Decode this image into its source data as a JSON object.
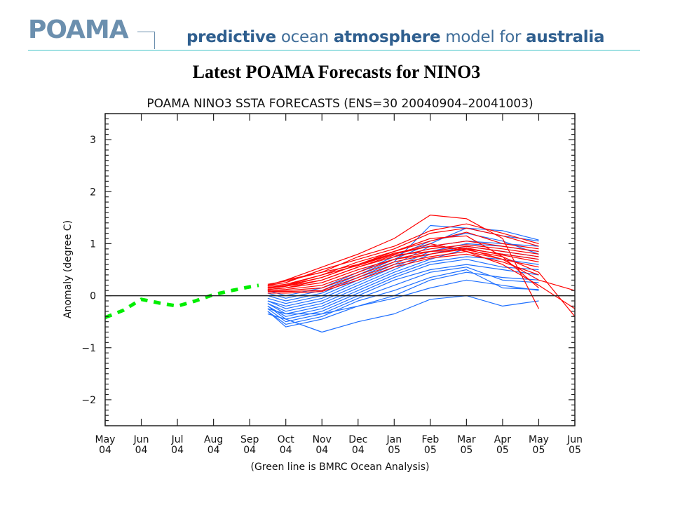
{
  "header": {
    "logo": "POAMA",
    "tagline": [
      {
        "text": "predictive",
        "bold": true
      },
      {
        "text": " ocean ",
        "bold": false
      },
      {
        "text": "atmosphere",
        "bold": true
      },
      {
        "text": " model for ",
        "bold": false
      },
      {
        "text": "australia",
        "bold": true
      }
    ],
    "colors": {
      "logo": "#6b8fae",
      "tagline": "#3f6d99",
      "rule": "#44c4c8"
    }
  },
  "page_title": "Latest POAMA Forecasts for NINO3",
  "chart_data": {
    "type": "line",
    "title": "POAMA NINO3 SSTA FORECASTS (ENS=30 20040904–20041003)",
    "xlabel": "(Green line is BMRC Ocean Analysis)",
    "ylabel": "Anomaly (degree C)",
    "x_ticks": [
      {
        "m": "May",
        "y": "04"
      },
      {
        "m": "Jun",
        "y": "04"
      },
      {
        "m": "Jul",
        "y": "04"
      },
      {
        "m": "Aug",
        "y": "04"
      },
      {
        "m": "Sep",
        "y": "04"
      },
      {
        "m": "Oct",
        "y": "04"
      },
      {
        "m": "Nov",
        "y": "04"
      },
      {
        "m": "Dec",
        "y": "04"
      },
      {
        "m": "Jan",
        "y": "05"
      },
      {
        "m": "Feb",
        "y": "05"
      },
      {
        "m": "Mar",
        "y": "05"
      },
      {
        "m": "Apr",
        "y": "05"
      },
      {
        "m": "May",
        "y": "05"
      },
      {
        "m": "Jun",
        "y": "05"
      }
    ],
    "xlim": [
      0,
      13
    ],
    "ylim": [
      -2.5,
      3.5
    ],
    "y_ticks": [
      -2,
      -1,
      0,
      1,
      2,
      3
    ],
    "y_minor_step": 0.1,
    "grid": false,
    "zero_line": true,
    "colors": {
      "analysis": "#00ee00",
      "red_members": "#ff0000",
      "blue_members": "#1e6fff",
      "axis": "#222222"
    },
    "analysis": {
      "name": "BMRC Ocean Analysis",
      "style": "dashed",
      "x": [
        0,
        0.5,
        1,
        1.5,
        2,
        2.5,
        3,
        3.5,
        4,
        4.25
      ],
      "y": [
        -0.42,
        -0.28,
        -0.07,
        -0.14,
        -0.2,
        -0.1,
        0.02,
        0.1,
        0.17,
        0.2
      ]
    },
    "red_members": [
      {
        "x": [
          4.5,
          5.0,
          6.0,
          7.0,
          8.0,
          9.0,
          10.0,
          11.0,
          12.0
        ],
        "y": [
          0.2,
          0.3,
          0.55,
          0.8,
          1.1,
          1.55,
          1.48,
          1.1,
          -0.25
        ]
      },
      {
        "x": [
          4.5,
          5.0,
          6.0,
          7.0,
          8.0,
          9.0,
          10.0,
          11.0,
          12.0
        ],
        "y": [
          0.22,
          0.28,
          0.45,
          0.75,
          0.95,
          1.25,
          1.38,
          1.2,
          1.0
        ]
      },
      {
        "x": [
          4.5,
          5.0,
          6.0,
          7.0,
          8.0,
          9.0,
          10.0,
          11.0,
          12.0
        ],
        "y": [
          0.2,
          0.25,
          0.5,
          0.7,
          0.9,
          1.2,
          1.3,
          1.15,
          0.95
        ]
      },
      {
        "x": [
          4.5,
          5.0,
          6.0,
          7.0,
          8.0,
          9.0,
          10.0,
          11.0,
          12.0
        ],
        "y": [
          0.18,
          0.22,
          0.4,
          0.65,
          0.85,
          1.05,
          1.22,
          1.0,
          0.9
        ]
      },
      {
        "x": [
          4.5,
          5.0,
          6.0,
          7.0,
          8.0,
          9.0,
          10.0,
          11.0,
          12.0
        ],
        "y": [
          0.15,
          0.2,
          0.35,
          0.6,
          0.8,
          0.95,
          1.05,
          0.95,
          0.85
        ]
      },
      {
        "x": [
          4.5,
          5.0,
          6.0,
          7.0,
          8.0,
          9.0,
          10.0,
          11.0,
          12.0
        ],
        "y": [
          0.15,
          0.18,
          0.3,
          0.55,
          0.75,
          0.9,
          0.98,
          0.9,
          0.8
        ]
      },
      {
        "x": [
          4.5,
          5.0,
          6.0,
          7.0,
          8.0,
          9.0,
          10.0,
          11.0,
          12.0
        ],
        "y": [
          0.12,
          0.15,
          0.25,
          0.5,
          0.7,
          0.85,
          0.95,
          0.85,
          0.75
        ]
      },
      {
        "x": [
          4.5,
          5.0,
          6.0,
          7.0,
          8.0,
          9.0,
          10.0,
          11.0,
          12.0
        ],
        "y": [
          0.1,
          0.12,
          0.2,
          0.45,
          0.7,
          0.8,
          0.9,
          0.8,
          0.7
        ]
      },
      {
        "x": [
          4.5,
          5.0,
          6.0,
          7.0,
          8.0,
          9.0,
          10.0,
          11.0,
          12.0
        ],
        "y": [
          0.1,
          0.1,
          0.15,
          0.4,
          0.65,
          0.8,
          0.92,
          0.78,
          0.65
        ]
      },
      {
        "x": [
          4.5,
          5.0,
          6.0,
          7.0,
          8.0,
          9.0,
          10.0,
          11.0,
          12.0,
          13.0
        ],
        "y": [
          0.12,
          0.15,
          0.3,
          0.55,
          0.78,
          0.85,
          0.88,
          0.75,
          0.45,
          -0.4
        ]
      },
      {
        "x": [
          4.5,
          5.0,
          6.0,
          7.0,
          8.0,
          9.0,
          10.0,
          11.0,
          12.0,
          13.0
        ],
        "y": [
          0.14,
          0.18,
          0.35,
          0.6,
          0.82,
          0.95,
          0.9,
          0.7,
          0.3,
          0.1
        ]
      },
      {
        "x": [
          4.5,
          5.0,
          6.0,
          7.0,
          8.0,
          9.0,
          10.0,
          11.0,
          12.0,
          13.0
        ],
        "y": [
          0.16,
          0.2,
          0.4,
          0.58,
          0.8,
          1.0,
          0.85,
          0.6,
          0.2,
          -0.25
        ]
      },
      {
        "x": [
          4.5,
          5.0,
          6.0,
          7.0,
          8.0,
          9.0,
          10.0,
          11.0,
          12.0
        ],
        "y": [
          0.08,
          0.08,
          0.1,
          0.35,
          0.6,
          0.75,
          0.85,
          0.7,
          0.55
        ]
      },
      {
        "x": [
          4.5,
          5.0,
          6.0,
          7.0,
          8.0,
          9.0,
          10.0,
          11.0,
          12.0
        ],
        "y": [
          0.05,
          0.05,
          0.08,
          0.3,
          0.55,
          0.72,
          0.8,
          0.65,
          0.4
        ]
      },
      {
        "x": [
          4.5,
          5.0,
          6.0,
          7.0,
          8.0,
          9.0,
          10.0,
          11.0,
          12.0
        ],
        "y": [
          0.2,
          0.3,
          0.45,
          0.6,
          0.85,
          1.1,
          1.15,
          0.75,
          0.15
        ]
      }
    ],
    "blue_members": [
      {
        "x": [
          4.5,
          5.0,
          6.0,
          7.0,
          8.0,
          9.0,
          10.0,
          11.0,
          12.0
        ],
        "y": [
          0.0,
          -0.1,
          0.05,
          0.35,
          0.65,
          1.35,
          1.3,
          1.25,
          1.07
        ]
      },
      {
        "x": [
          4.5,
          5.0,
          6.0,
          7.0,
          8.0,
          9.0,
          10.0,
          11.0,
          12.0
        ],
        "y": [
          0.05,
          -0.05,
          0.1,
          0.4,
          0.7,
          1.0,
          1.3,
          1.15,
          1.05
        ]
      },
      {
        "x": [
          4.5,
          5.0,
          6.0,
          7.0,
          8.0,
          9.0,
          10.0,
          11.0,
          12.0
        ],
        "y": [
          -0.05,
          -0.15,
          0.0,
          0.3,
          0.6,
          0.95,
          1.05,
          1.0,
          0.95
        ]
      },
      {
        "x": [
          4.5,
          5.0,
          6.0,
          7.0,
          8.0,
          9.0,
          10.0,
          11.0,
          12.0
        ],
        "y": [
          -0.1,
          -0.2,
          -0.05,
          0.25,
          0.55,
          0.85,
          1.0,
          0.95,
          0.85
        ]
      },
      {
        "x": [
          4.5,
          5.0,
          6.0,
          7.0,
          8.0,
          9.0,
          10.0,
          11.0,
          12.0
        ],
        "y": [
          -0.1,
          -0.25,
          -0.1,
          0.2,
          0.5,
          0.8,
          0.95,
          0.85,
          0.75
        ]
      },
      {
        "x": [
          4.5,
          5.0,
          6.0,
          7.0,
          8.0,
          9.0,
          10.0,
          11.0,
          12.0
        ],
        "y": [
          -0.15,
          -0.3,
          -0.15,
          0.15,
          0.45,
          0.7,
          0.9,
          0.8,
          0.7
        ]
      },
      {
        "x": [
          4.5,
          5.0,
          6.0,
          7.0,
          8.0,
          9.0,
          10.0,
          11.0,
          12.0
        ],
        "y": [
          -0.15,
          -0.35,
          -0.2,
          0.1,
          0.4,
          0.65,
          0.75,
          0.7,
          0.6
        ]
      },
      {
        "x": [
          4.5,
          5.0,
          6.0,
          7.0,
          8.0,
          9.0,
          10.0,
          11.0,
          12.0
        ],
        "y": [
          -0.2,
          -0.4,
          -0.25,
          0.05,
          0.35,
          0.6,
          0.7,
          0.55,
          0.5
        ]
      },
      {
        "x": [
          4.5,
          5.0,
          6.0,
          7.0,
          8.0,
          9.0,
          10.0,
          11.0,
          12.0
        ],
        "y": [
          -0.2,
          -0.45,
          -0.3,
          0.0,
          0.3,
          0.5,
          0.6,
          0.5,
          0.4
        ]
      },
      {
        "x": [
          4.5,
          5.0,
          6.0,
          7.0,
          8.0,
          9.0,
          10.0,
          11.0,
          12.0
        ],
        "y": [
          -0.25,
          -0.5,
          -0.35,
          -0.05,
          0.2,
          0.45,
          0.55,
          0.3,
          0.25
        ]
      },
      {
        "x": [
          4.5,
          5.0,
          6.0,
          7.0,
          8.0,
          9.0,
          10.0,
          11.0,
          12.0
        ],
        "y": [
          -0.3,
          -0.55,
          -0.4,
          -0.1,
          0.1,
          0.35,
          0.5,
          0.15,
          0.12
        ]
      },
      {
        "x": [
          4.5,
          5.0,
          6.0,
          7.0,
          8.0,
          9.0,
          10.0,
          11.0,
          12.0
        ],
        "y": [
          -0.3,
          -0.6,
          -0.45,
          -0.2,
          0.0,
          0.3,
          0.45,
          0.35,
          0.3
        ]
      },
      {
        "x": [
          4.5,
          5.0,
          6.0,
          7.0,
          8.0,
          9.0,
          10.0,
          11.0,
          12.0
        ],
        "y": [
          -0.35,
          -0.45,
          -0.7,
          -0.5,
          -0.35,
          -0.07,
          0.0,
          -0.2,
          -0.1
        ]
      },
      {
        "x": [
          4.5,
          5.0,
          6.0,
          7.0,
          8.0,
          9.0,
          10.0,
          11.0,
          12.0
        ],
        "y": [
          -0.25,
          -0.35,
          -0.35,
          -0.2,
          -0.05,
          0.15,
          0.3,
          0.2,
          0.1
        ]
      },
      {
        "x": [
          4.5,
          5.0,
          6.0,
          7.0,
          8.0,
          9.0,
          10.0,
          11.0,
          12.0
        ],
        "y": [
          0.1,
          0.0,
          0.15,
          0.45,
          0.75,
          1.05,
          1.2,
          1.05,
          0.8
        ]
      }
    ]
  }
}
